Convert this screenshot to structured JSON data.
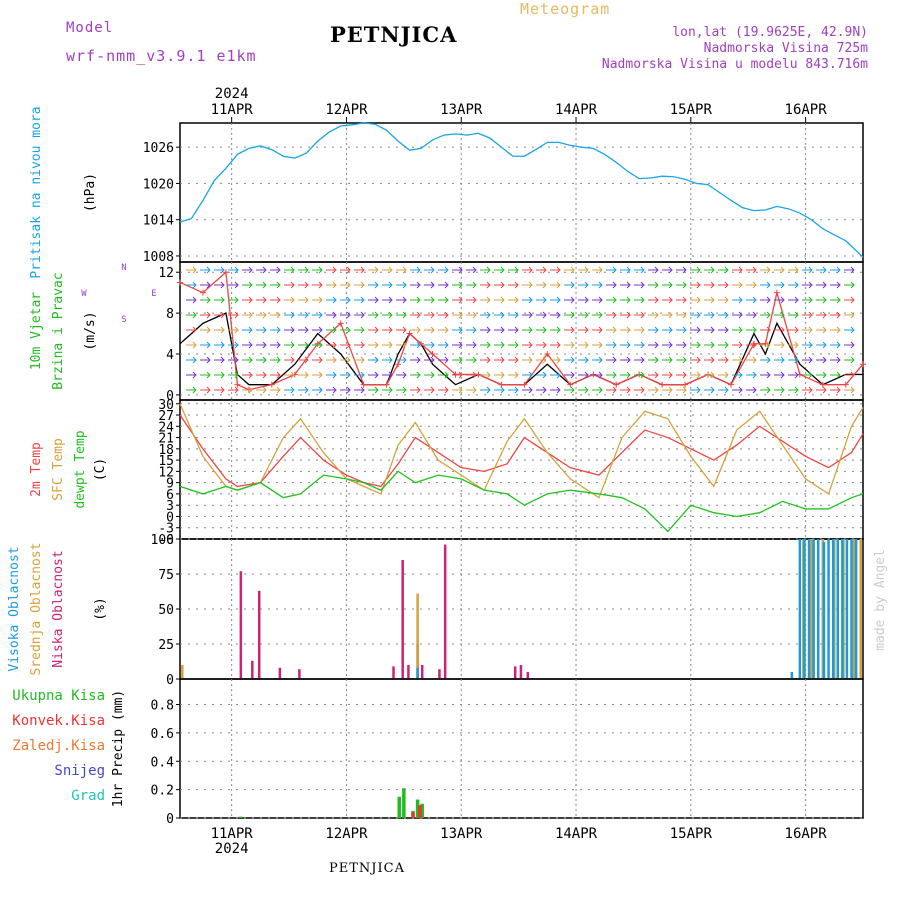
{
  "header": {
    "model_label": "Model",
    "model_name": "wrf-nmm_v3.9.1 e1km",
    "title": "PETNJICA",
    "meteogram_label": "Meteogram",
    "lonlat": "lon,lat (19.9625E, 42.9N)",
    "elevation": "Nadmorska Visina 725m",
    "model_elevation": "Nadmorska Visina u modelu 843.716m",
    "watermark": "made by Angel",
    "footer": "PETNJICA"
  },
  "colors": {
    "pressure": "#1aa3e8",
    "temp2m": "#ee4444",
    "sfc_temp": "#d4a23c",
    "dewpoint": "#1ec21e",
    "high_cloud": "#1a9be0",
    "mid_cloud": "#d4a23c",
    "low_cloud": "#cc2277",
    "precip_total": "#22bb22",
    "precip_conv": "#ee3333",
    "precip_frozen": "#ee7733",
    "snow": "#4444dd",
    "hail": "#22c4b0",
    "title_purple": "#a040c0",
    "meteogram_label": "#e8b860"
  },
  "chart_data": [
    {
      "type": "line",
      "panel": "pressure",
      "ylabel_lines": [
        "Pritisak na nivou mora",
        "(hPa)"
      ],
      "yticks": [
        1008,
        1014,
        1020,
        1026
      ],
      "ylim": [
        1007,
        1030
      ],
      "top_date_year": "2024",
      "x_ticks": [
        "11APR",
        "12APR",
        "13APR",
        "14APR",
        "15APR",
        "16APR"
      ],
      "x_range_days": [
        10.55,
        16.5
      ],
      "grid": true,
      "series": [
        {
          "key": "pressure",
          "x": [
            10.55,
            10.65,
            10.75,
            10.85,
            10.95,
            11.05,
            11.15,
            11.25,
            11.35,
            11.45,
            11.55,
            11.65,
            11.75,
            11.85,
            11.95,
            12.05,
            12.15,
            12.25,
            12.35,
            12.45,
            12.55,
            12.65,
            12.75,
            12.85,
            12.95,
            13.05,
            13.15,
            13.25,
            13.35,
            13.45,
            13.55,
            13.65,
            13.75,
            13.85,
            13.95,
            14.05,
            14.15,
            14.25,
            14.35,
            14.45,
            14.55,
            14.65,
            14.75,
            14.85,
            14.95,
            15.05,
            15.15,
            15.25,
            15.35,
            15.45,
            15.55,
            15.65,
            15.75,
            15.85,
            15.95,
            16.05,
            16.15,
            16.25,
            16.35,
            16.5
          ],
          "values": [
            1013.6,
            1014.2,
            1017.2,
            1020.5,
            1022.5,
            1024.8,
            1025.8,
            1026.2,
            1025.6,
            1024.5,
            1024.2,
            1025.0,
            1027.0,
            1028.5,
            1029.5,
            1029.7,
            1030.0,
            1029.8,
            1028.8,
            1027.0,
            1025.5,
            1025.8,
            1027.2,
            1028.0,
            1028.2,
            1028.0,
            1028.3,
            1027.5,
            1026.0,
            1024.5,
            1024.5,
            1025.6,
            1026.8,
            1026.8,
            1026.3,
            1026.0,
            1025.8,
            1024.8,
            1023.5,
            1022.0,
            1020.8,
            1020.9,
            1021.2,
            1021.1,
            1020.7,
            1020.0,
            1019.8,
            1018.5,
            1017.2,
            1016.0,
            1015.5,
            1015.6,
            1016.2,
            1015.8,
            1015.1,
            1014.0,
            1012.5,
            1011.5,
            1010.5,
            1007.8
          ]
        }
      ]
    },
    {
      "type": "line",
      "panel": "wind",
      "ylabel_lines": [
        "10m Vjetar",
        "Brzina i Pravac",
        "(m/s)"
      ],
      "compass_labels": {
        "n": "N",
        "s": "S",
        "w": "W",
        "e": "E"
      },
      "yticks": [
        0,
        4,
        8,
        12
      ],
      "ylim": [
        -0.5,
        13
      ],
      "grid": true,
      "series": [
        {
          "key": "speed",
          "name": "",
          "x": [
            10.55,
            10.75,
            10.95,
            11.05,
            11.15,
            11.35,
            11.55,
            11.75,
            11.95,
            12.15,
            12.35,
            12.45,
            12.55,
            12.65,
            12.75,
            12.95,
            13.15,
            13.35,
            13.55,
            13.75,
            13.95,
            14.15,
            14.35,
            14.55,
            14.75,
            14.95,
            15.15,
            15.35,
            15.55,
            15.65,
            15.75,
            15.95,
            16.15,
            16.35,
            16.5
          ],
          "values": [
            5,
            7,
            8,
            2,
            1,
            1,
            3,
            6,
            4,
            1,
            1,
            4,
            6,
            5,
            3,
            1,
            2,
            1,
            1,
            3,
            1,
            2,
            1,
            2,
            1,
            1,
            2,
            1,
            6,
            4,
            7,
            3,
            1,
            2,
            2
          ]
        },
        {
          "key": "gust",
          "name": "",
          "x": [
            10.55,
            10.75,
            10.95,
            11.05,
            11.15,
            11.35,
            11.55,
            11.75,
            11.95,
            12.15,
            12.35,
            12.45,
            12.55,
            12.65,
            12.75,
            12.95,
            13.15,
            13.35,
            13.55,
            13.75,
            13.95,
            14.15,
            14.35,
            14.55,
            14.75,
            14.95,
            15.15,
            15.35,
            15.55,
            15.65,
            15.75,
            15.95,
            16.15,
            16.35,
            16.5
          ],
          "values": [
            11,
            10,
            12,
            1,
            0.5,
            1,
            2,
            5,
            7,
            1,
            1,
            3,
            6,
            5,
            4,
            2,
            2,
            1,
            1,
            4,
            1,
            2,
            1,
            2,
            1,
            1,
            2,
            1,
            5,
            5,
            10,
            2,
            1,
            1,
            3
          ]
        }
      ]
    },
    {
      "type": "line",
      "panel": "temperature",
      "ylabel_lines": [
        "2m Temp",
        "SFC Temp",
        "dewpt Temp",
        "(C)"
      ],
      "yticks": [
        -6,
        -3,
        0,
        3,
        6,
        9,
        12,
        15,
        18,
        21,
        24,
        27,
        30
      ],
      "ylim": [
        -6,
        31
      ],
      "grid": true,
      "series": [
        {
          "key": "temp2m",
          "x": [
            10.55,
            10.75,
            10.95,
            11.05,
            11.25,
            11.45,
            11.6,
            11.8,
            12.0,
            12.15,
            12.3,
            12.45,
            12.6,
            12.8,
            13.0,
            13.2,
            13.4,
            13.55,
            13.75,
            13.95,
            14.2,
            14.4,
            14.6,
            14.8,
            15.0,
            15.2,
            15.4,
            15.6,
            15.8,
            16.0,
            16.2,
            16.4,
            16.5
          ],
          "values": [
            27,
            18,
            10,
            8,
            9,
            16,
            21,
            15,
            11,
            9,
            8,
            14,
            21,
            17,
            13,
            12,
            14,
            21,
            17,
            13,
            11,
            17,
            23,
            21,
            18,
            15,
            19,
            24,
            20,
            16,
            13,
            17,
            22
          ]
        },
        {
          "key": "sfc_temp",
          "x": [
            10.55,
            10.75,
            10.95,
            11.05,
            11.25,
            11.45,
            11.6,
            11.8,
            12.0,
            12.15,
            12.3,
            12.45,
            12.6,
            12.8,
            13.0,
            13.2,
            13.4,
            13.55,
            13.75,
            13.95,
            14.2,
            14.4,
            14.6,
            14.8,
            15.0,
            15.2,
            15.4,
            15.6,
            15.8,
            16.0,
            16.2,
            16.4,
            16.5
          ],
          "values": [
            30,
            16,
            8,
            7,
            9,
            21,
            26,
            17,
            10,
            8,
            6,
            19,
            25,
            15,
            11,
            7,
            20,
            26,
            17,
            10,
            5,
            21,
            28,
            26,
            16,
            8,
            23,
            28,
            19,
            10,
            6,
            24,
            29
          ]
        },
        {
          "key": "dewpoint",
          "x": [
            10.55,
            10.75,
            10.95,
            11.05,
            11.25,
            11.45,
            11.6,
            11.8,
            12.0,
            12.15,
            12.3,
            12.45,
            12.6,
            12.8,
            13.0,
            13.2,
            13.4,
            13.55,
            13.75,
            13.95,
            14.2,
            14.4,
            14.6,
            14.8,
            15.0,
            15.2,
            15.4,
            15.6,
            15.8,
            16.0,
            16.2,
            16.4,
            16.5
          ],
          "values": [
            8,
            6,
            8,
            7,
            9,
            5,
            6,
            11,
            10,
            9,
            7,
            12,
            9,
            11,
            10,
            7,
            6,
            3,
            6,
            7,
            6,
            5,
            2,
            -4,
            3,
            1,
            0,
            1,
            4,
            2,
            2,
            5,
            6
          ]
        }
      ]
    },
    {
      "type": "bar",
      "panel": "cloud",
      "ylabel_lines": [
        "Visoka Oblacnost",
        "Srednja Oblacnost",
        "Niska Oblacnost",
        "(%)"
      ],
      "yticks": [
        0,
        25,
        50,
        75,
        100
      ],
      "ylim": [
        0,
        100
      ],
      "grid": true,
      "series": [
        {
          "key": "low_cloud",
          "x": [
            11.08,
            11.18,
            11.24,
            11.42,
            11.59,
            12.41,
            12.49,
            12.54,
            12.62,
            12.66,
            12.81,
            12.86,
            13.47,
            13.52,
            13.58
          ],
          "values": [
            77,
            13,
            63,
            8,
            7,
            9,
            85,
            10,
            25,
            10,
            7,
            96,
            9,
            10,
            5
          ]
        },
        {
          "key": "mid_cloud",
          "x": [
            10.57,
            12.62,
            15.98,
            16.05,
            16.15,
            16.25,
            16.33,
            16.42,
            16.48
          ],
          "values": [
            10,
            61,
            100,
            100,
            100,
            100,
            100,
            100,
            100
          ]
        },
        {
          "key": "high_cloud",
          "x": [
            12.62,
            15.88,
            15.95,
            15.99,
            16.03,
            16.07,
            16.11,
            16.16,
            16.2,
            16.24,
            16.28,
            16.32,
            16.36,
            16.4,
            16.44
          ],
          "values": [
            8,
            5,
            100,
            100,
            100,
            100,
            100,
            98,
            100,
            100,
            100,
            100,
            100,
            100,
            100
          ]
        }
      ]
    },
    {
      "type": "bar",
      "panel": "precip",
      "ylabel_lines": [
        "Ukupna Kisa",
        "Konvek.Kisa",
        "Zaledj.Kisa",
        "Snijeg",
        "Grad",
        "1hr Precip (mm)"
      ],
      "yticks": [
        0,
        0.2,
        0.4,
        0.6,
        0.8
      ],
      "ylim": [
        0,
        0.98
      ],
      "bottom_date_year": "2024",
      "grid": true,
      "series": [
        {
          "key": "precip_total",
          "x": [
            11.08,
            12.46,
            12.5,
            12.58,
            12.62,
            12.66
          ],
          "values": [
            0.01,
            0.15,
            0.21,
            0.05,
            0.13,
            0.1
          ]
        },
        {
          "key": "precip_conv",
          "x": [
            12.58,
            12.64
          ],
          "values": [
            0.04,
            0.09
          ]
        }
      ]
    }
  ]
}
